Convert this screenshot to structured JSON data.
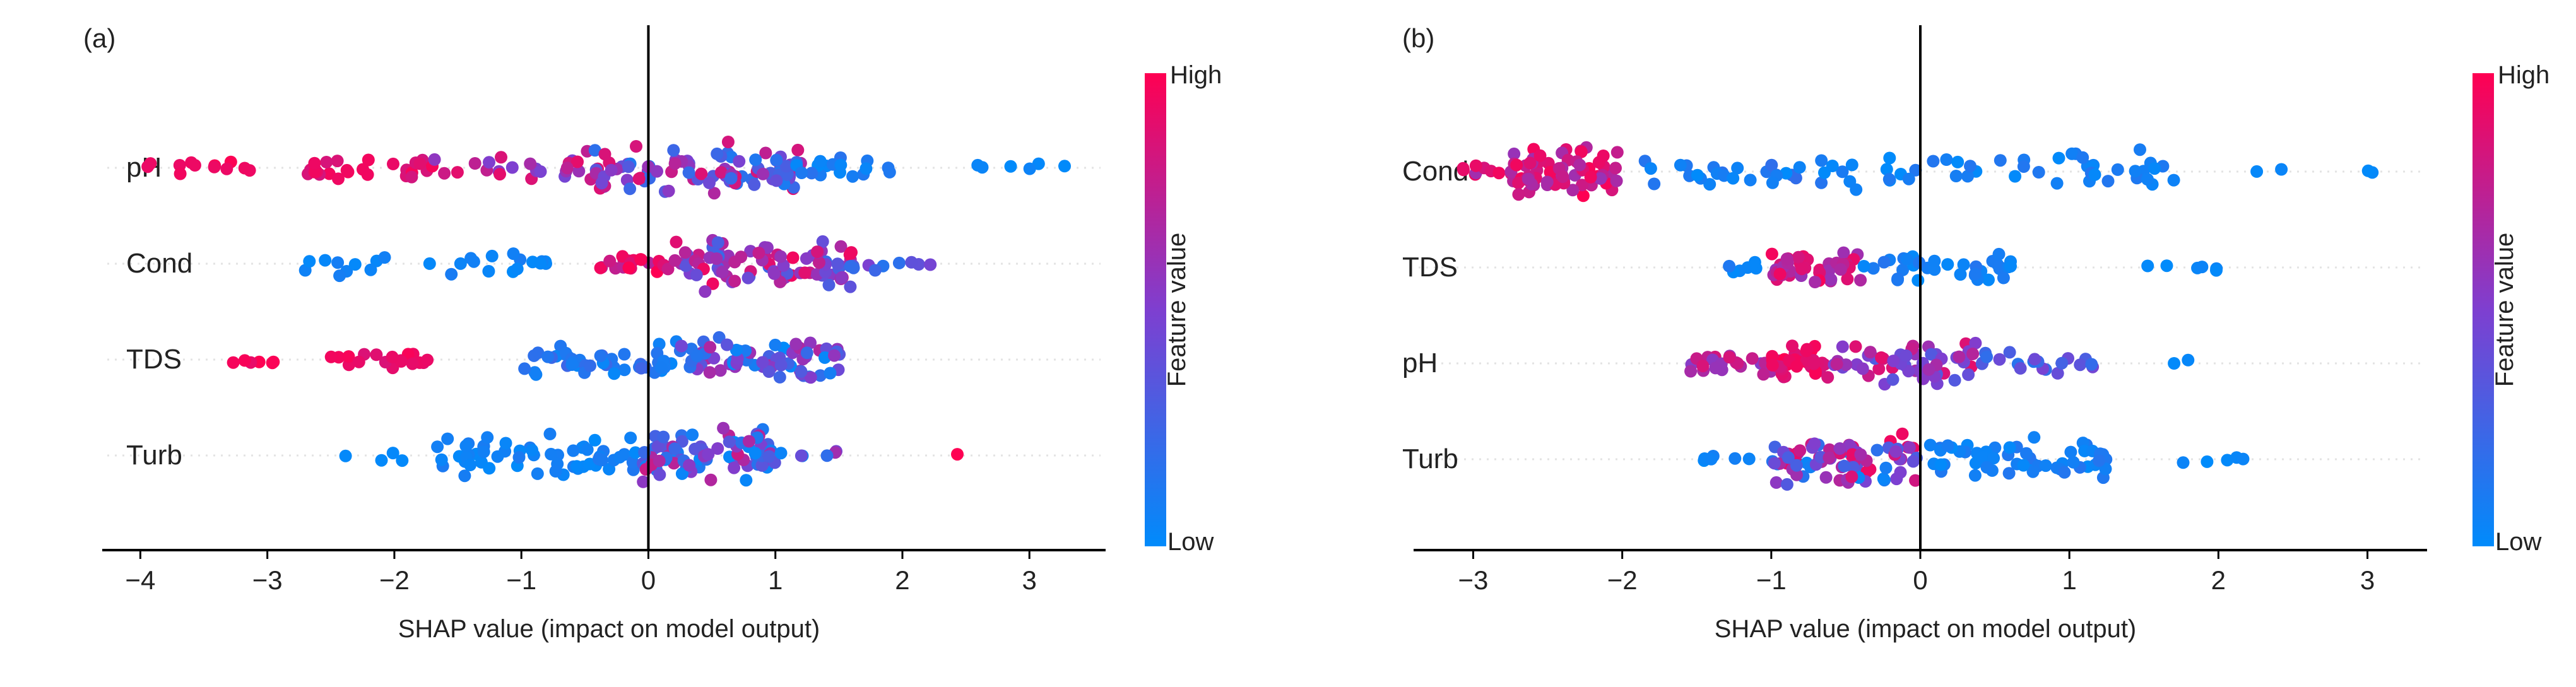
{
  "panels": [
    {
      "tag": "(a)",
      "chart_data": {
        "type": "scatter",
        "subtype": "shap-beeswarm",
        "xlabel": "SHAP value (impact on model output)",
        "xlim": [
          -4.3,
          3.6
        ],
        "xticks": [
          -4,
          -3,
          -2,
          -1,
          0,
          1,
          2,
          3
        ],
        "xtick_labels": [
          "−4",
          "−3",
          "−2",
          "−1",
          "0",
          "1",
          "2",
          "3"
        ],
        "features": [
          "pH",
          "Cond",
          "TDS",
          "Turb"
        ],
        "colorbar": {
          "label": "Feature value",
          "high": "High",
          "low": "Low",
          "high_color": "#ff0052",
          "low_color": "#008bfb"
        },
        "series": [
          {
            "feature": "pH",
            "clusters": [
              {
                "x": [
                  -3.95,
                  -3.0
                ],
                "v": [
                  0.92,
                  1.0
                ],
                "n": 12
              },
              {
                "x": [
                  -2.7,
                  -1.7
                ],
                "v": [
                  0.82,
                  0.98
                ],
                "n": 26
              },
              {
                "x": [
                  -1.7,
                  -0.5
                ],
                "v": [
                  0.45,
                  0.9
                ],
                "n": 22
              },
              {
                "x": [
                  -0.5,
                  1.2
                ],
                "v": [
                  0.1,
                  0.9
                ],
                "n": 95
              },
              {
                "x": [
                  1.0,
                  2.0
                ],
                "v": [
                  0.0,
                  0.18
                ],
                "n": 20
              },
              {
                "x": [
                  2.3,
                  3.35
                ],
                "v": [
                  0.0,
                  0.05
                ],
                "n": 6
              }
            ]
          },
          {
            "feature": "Cond",
            "clusters": [
              {
                "x": [
                  -2.85,
                  -0.8
                ],
                "v": [
                  0.0,
                  0.1
                ],
                "n": 26
              },
              {
                "x": [
                  -0.4,
                  0.2
                ],
                "v": [
                  0.7,
                  1.0
                ],
                "n": 22
              },
              {
                "x": [
                  0.2,
                  1.6
                ],
                "v": [
                  0.2,
                  0.95
                ],
                "n": 85
              },
              {
                "x": [
                  1.5,
                  2.35
                ],
                "v": [
                  0.15,
                  0.5
                ],
                "n": 10
              }
            ]
          },
          {
            "feature": "TDS",
            "clusters": [
              {
                "x": [
                  -3.3,
                  -2.9
                ],
                "v": [
                  0.9,
                  1.0
                ],
                "n": 6
              },
              {
                "x": [
                  -2.5,
                  -1.6
                ],
                "v": [
                  0.85,
                  1.0
                ],
                "n": 18
              },
              {
                "x": [
                  -1.0,
                  0.2
                ],
                "v": [
                  0.0,
                  0.25
                ],
                "n": 45
              },
              {
                "x": [
                  0.2,
                  1.55
                ],
                "v": [
                  0.0,
                  0.7
                ],
                "n": 75
              }
            ]
          },
          {
            "feature": "Turb",
            "clusters": [
              {
                "x": [
                  -2.55,
                  -1.9
                ],
                "v": [
                  0.0,
                  0.05
                ],
                "n": 4
              },
              {
                "x": [
                  -1.7,
                  -0.2
                ],
                "v": [
                  0.0,
                  0.12
                ],
                "n": 55
              },
              {
                "x": [
                  -0.2,
                  1.0
                ],
                "v": [
                  0.0,
                  0.8
                ],
                "n": 85
              },
              {
                "x": [
                  1.0,
                  1.5
                ],
                "v": [
                  0.0,
                  0.7
                ],
                "n": 6
              },
              {
                "x": [
                  2.4,
                  2.45
                ],
                "v": [
                  0.97,
                  1.0
                ],
                "n": 1
              }
            ]
          }
        ]
      }
    },
    {
      "tag": "(b)",
      "chart_data": {
        "type": "scatter",
        "subtype": "shap-beeswarm",
        "xlabel": "SHAP value (impact on model output)",
        "xlim": [
          -3.4,
          3.4
        ],
        "xticks": [
          -3,
          -2,
          -1,
          0,
          1,
          2,
          3
        ],
        "xtick_labels": [
          "−3",
          "−2",
          "−1",
          "0",
          "1",
          "2",
          "3"
        ],
        "features": [
          "Cond",
          "TDS",
          "pH",
          "Turb"
        ],
        "colorbar": {
          "label": "Feature value",
          "high": "High",
          "low": "Low",
          "high_color": "#ff0052",
          "low_color": "#008bfb"
        },
        "series": [
          {
            "feature": "Cond",
            "clusters": [
              {
                "x": [
                  -3.1,
                  -2.75
                ],
                "v": [
                  0.6,
                  0.95
                ],
                "n": 8
              },
              {
                "x": [
                  -2.75,
                  -2.0
                ],
                "v": [
                  0.6,
                  1.0
                ],
                "n": 70
              },
              {
                "x": [
                  -1.9,
                  -0.8
                ],
                "v": [
                  0.0,
                  0.2
                ],
                "n": 25
              },
              {
                "x": [
                  -0.7,
                  1.9
                ],
                "v": [
                  0.0,
                  0.15
                ],
                "n": 50
              },
              {
                "x": [
                  2.2,
                  3.15
                ],
                "v": [
                  0.0,
                  0.05
                ],
                "n": 4
              }
            ]
          },
          {
            "feature": "TDS",
            "clusters": [
              {
                "x": [
                  -1.3,
                  -1.0
                ],
                "v": [
                  0.0,
                  0.2
                ],
                "n": 6
              },
              {
                "x": [
                  -1.0,
                  -0.4
                ],
                "v": [
                  0.6,
                  1.0
                ],
                "n": 45
              },
              {
                "x": [
                  -0.4,
                  0.65
                ],
                "v": [
                  0.0,
                  0.15
                ],
                "n": 35
              },
              {
                "x": [
                  1.5,
                  2.25
                ],
                "v": [
                  0.0,
                  0.05
                ],
                "n": 6
              }
            ]
          },
          {
            "feature": "pH",
            "clusters": [
              {
                "x": [
                  -1.6,
                  -1.0
                ],
                "v": [
                  0.5,
                  0.85
                ],
                "n": 22
              },
              {
                "x": [
                  -1.0,
                  -0.6
                ],
                "v": [
                  0.8,
                  1.0
                ],
                "n": 40
              },
              {
                "x": [
                  -0.6,
                  0.4
                ],
                "v": [
                  0.3,
                  0.95
                ],
                "n": 55
              },
              {
                "x": [
                  0.4,
                  1.2
                ],
                "v": [
                  0.1,
                  0.5
                ],
                "n": 20
              },
              {
                "x": [
                  1.7,
                  1.8
                ],
                "v": [
                  0.0,
                  0.05
                ],
                "n": 2
              }
            ]
          },
          {
            "feature": "Turb",
            "clusters": [
              {
                "x": [
                  -1.55,
                  -1.0
                ],
                "v": [
                  0.0,
                  0.1
                ],
                "n": 6
              },
              {
                "x": [
                  -1.0,
                  0.0
                ],
                "v": [
                  0.0,
                  0.95
                ],
                "n": 85
              },
              {
                "x": [
                  0.0,
                  1.3
                ],
                "v": [
                  0.0,
                  0.15
                ],
                "n": 55
              },
              {
                "x": [
                  1.6,
                  2.25
                ],
                "v": [
                  0.0,
                  0.05
                ],
                "n": 5
              }
            ]
          }
        ]
      }
    }
  ]
}
